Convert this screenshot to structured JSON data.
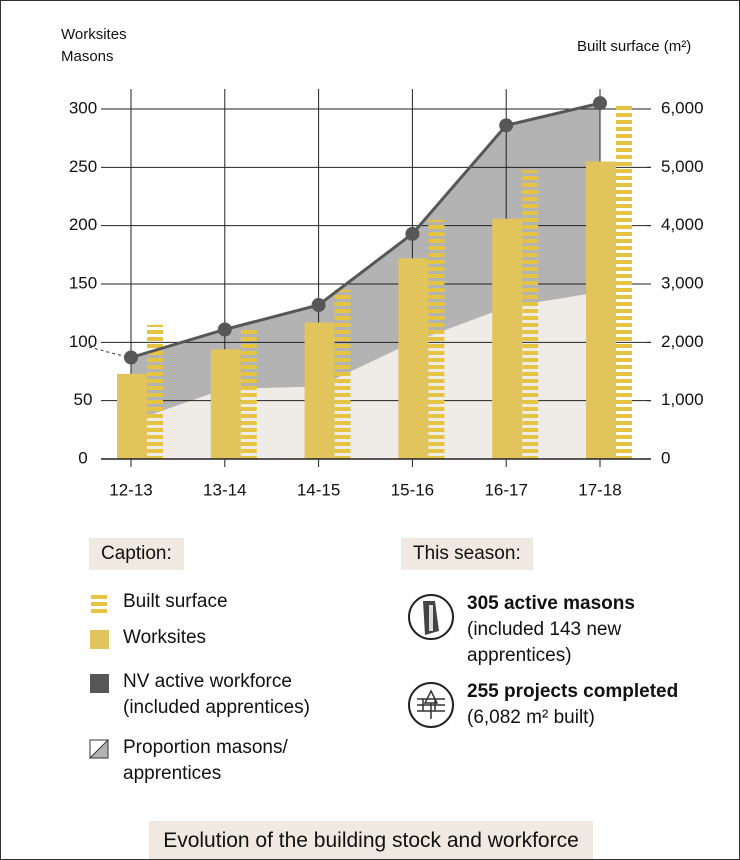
{
  "chart_data": {
    "type": "combo",
    "ylabel": [
      "Worksites",
      "Masons"
    ],
    "y2label": "Built surface (m²)",
    "categories": [
      "12-13",
      "13-14",
      "14-15",
      "15-16",
      "16-17",
      "17-18"
    ],
    "ylim": [
      0,
      300
    ],
    "yticks": [
      0,
      50,
      100,
      150,
      200,
      250,
      300
    ],
    "y2lim": [
      0,
      6000
    ],
    "y2ticks": [
      {
        "value": 0,
        "label": "0"
      },
      {
        "value": 1000,
        "label": "1,000"
      },
      {
        "value": 2000,
        "label": "2,000"
      },
      {
        "value": 3000,
        "label": "3,000"
      },
      {
        "value": 4000,
        "label": "4,000"
      },
      {
        "value": 5000,
        "label": "5,000"
      },
      {
        "value": 6000,
        "label": "6,000"
      }
    ],
    "grid": true,
    "series": [
      {
        "name": "Built surface",
        "kind": "striped-bar",
        "axis": "y2",
        "color": "#e6c443",
        "values": [
          2300,
          2250,
          2900,
          4100,
          4950,
          6082
        ]
      },
      {
        "name": "Worksites",
        "kind": "bar",
        "color": "#e1c45c",
        "values": [
          73,
          94,
          117,
          172,
          206,
          255
        ]
      },
      {
        "name": "NV active workforce (included apprentices)",
        "kind": "line",
        "color": "#575757",
        "values": [
          87,
          111,
          132,
          193,
          286,
          305
        ]
      },
      {
        "name": "Proportion masons/ apprentices",
        "kind": "area",
        "color": "#efebe6",
        "values": [
          32,
          60,
          62,
          100,
          130,
          143
        ]
      }
    ]
  },
  "caption": "Caption:",
  "season": {
    "title": "This season:",
    "items": [
      {
        "headline": "305 active masons",
        "detail": "(included 143 new apprentices)"
      },
      {
        "headline": "255 projects completed",
        "detail": "(6,082 m² built)"
      }
    ]
  },
  "footer": "Evolution of the building stock and workforce"
}
